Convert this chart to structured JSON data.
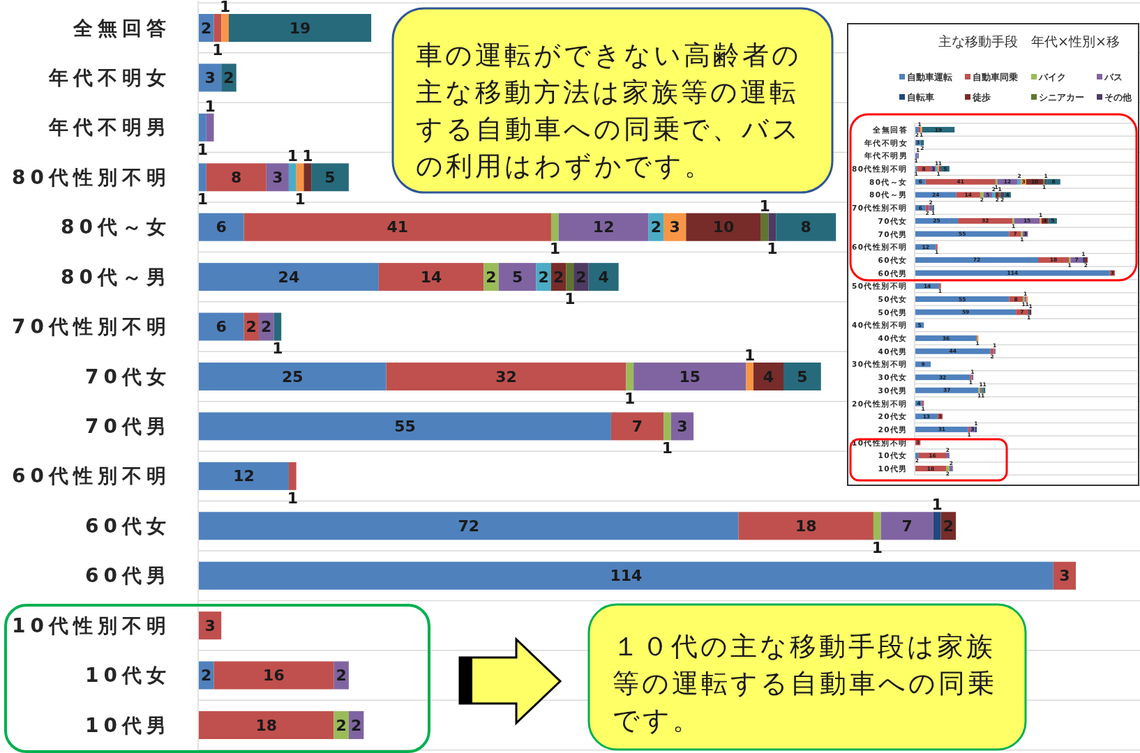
{
  "chart_data": [
    {
      "type": "bar",
      "orientation": "horizontal",
      "stacked": true,
      "data_labels": true,
      "grid": "y",
      "categories": [
        "全無回答",
        "年代不明女",
        "年代不明男",
        "80代性別不明",
        "80代～女",
        "80代～男",
        "70代性別不明",
        "70代女",
        "70代男",
        "60代性別不明",
        "60代女",
        "60代男",
        "10代性別不明",
        "10代女",
        "10代男"
      ],
      "series": [
        {
          "color": "#4f81bd",
          "values": [
            2,
            3,
            1,
            1,
            6,
            24,
            6,
            25,
            55,
            12,
            72,
            114,
            null,
            2,
            null
          ]
        },
        {
          "color": "#c0504d",
          "values": [
            1,
            null,
            null,
            8,
            41,
            14,
            2,
            32,
            7,
            1,
            18,
            3,
            3,
            16,
            18
          ]
        },
        {
          "color": "#9bbb59",
          "values": [
            null,
            null,
            null,
            null,
            1,
            2,
            null,
            1,
            1,
            null,
            1,
            null,
            null,
            null,
            2
          ]
        },
        {
          "color": "#8064a2",
          "values": [
            null,
            null,
            1,
            3,
            12,
            5,
            2,
            15,
            3,
            null,
            7,
            null,
            null,
            2,
            2
          ]
        },
        {
          "color": "#4bacc6",
          "values": [
            null,
            null,
            null,
            1,
            2,
            2,
            null,
            null,
            null,
            null,
            null,
            null,
            null,
            null,
            null
          ]
        },
        {
          "color": "#f79646",
          "values": [
            1,
            null,
            null,
            1,
            3,
            null,
            null,
            1,
            null,
            null,
            null,
            null,
            null,
            null,
            null
          ]
        },
        {
          "color": "#1f497d",
          "values": [
            null,
            null,
            null,
            null,
            null,
            null,
            null,
            null,
            null,
            null,
            1,
            null,
            null,
            null,
            null
          ]
        },
        {
          "color": "#772c2a",
          "values": [
            null,
            null,
            null,
            1,
            10,
            2,
            null,
            4,
            null,
            null,
            2,
            null,
            null,
            null,
            null
          ]
        },
        {
          "color": "#5f7530",
          "values": [
            null,
            null,
            null,
            null,
            1,
            1,
            null,
            null,
            null,
            null,
            null,
            null,
            null,
            null,
            null
          ]
        },
        {
          "color": "#4d3b62",
          "values": [
            null,
            null,
            null,
            null,
            1,
            2,
            null,
            null,
            null,
            null,
            null,
            null,
            null,
            null,
            null
          ]
        },
        {
          "color": "#276a7c",
          "values": [
            19,
            2,
            null,
            5,
            8,
            4,
            1,
            5,
            null,
            null,
            null,
            null,
            null,
            null,
            null
          ]
        }
      ],
      "annotations": [
        "車の運転ができない高齢者の主な移動方法は家族等の運転する自動車への同乗で、バスの利用はわずかです。",
        "１０代の主な移動手段は家族等の運転する自動車への同乗です。"
      ]
    },
    {
      "type": "bar",
      "orientation": "horizontal",
      "stacked": true,
      "data_labels": true,
      "grid": "y",
      "legend": "top",
      "title": "主な移動手段　年代×性別×移",
      "categories": [
        "全無回答",
        "年代不明女",
        "年代不明男",
        "80代性別不明",
        "80代～女",
        "80代～男",
        "70代性別不明",
        "70代女",
        "70代男",
        "60代性別不明",
        "60代女",
        "60代男",
        "50代性別不明",
        "50代女",
        "50代男",
        "40代性別不明",
        "40代女",
        "40代男",
        "30代性別不明",
        "30代女",
        "30代男",
        "20代性別不明",
        "20代女",
        "20代男",
        "10代性別不明",
        "10代女",
        "10代男"
      ],
      "series": [
        {
          "name": "自動車運転",
          "color": "#4f81bd",
          "values": [
            2,
            3,
            1,
            1,
            6,
            24,
            6,
            25,
            55,
            12,
            72,
            114,
            14,
            55,
            59,
            5,
            36,
            44,
            9,
            32,
            37,
            4,
            13,
            31,
            null,
            2,
            null
          ]
        },
        {
          "name": "自動車同乗",
          "color": "#c0504d",
          "values": [
            1,
            null,
            null,
            8,
            41,
            14,
            2,
            32,
            7,
            1,
            18,
            3,
            1,
            8,
            7,
            null,
            null,
            2,
            null,
            1,
            null,
            1,
            3,
            1,
            3,
            16,
            18
          ]
        },
        {
          "name": "バイク",
          "color": "#9bbb59",
          "values": [
            null,
            null,
            null,
            null,
            1,
            2,
            null,
            1,
            1,
            null,
            1,
            null,
            null,
            1,
            null,
            null,
            null,
            null,
            null,
            null,
            1,
            null,
            null,
            null,
            null,
            null,
            2
          ]
        },
        {
          "name": "バス",
          "color": "#8064a2",
          "values": [
            null,
            null,
            1,
            3,
            12,
            5,
            2,
            15,
            3,
            null,
            7,
            null,
            null,
            1,
            null,
            null,
            null,
            1,
            null,
            1,
            1,
            null,
            null,
            3,
            null,
            2,
            2
          ]
        },
        {
          "color": "#4bacc6",
          "values": [
            null,
            null,
            null,
            1,
            2,
            2,
            null,
            null,
            null,
            null,
            null,
            null,
            null,
            null,
            null,
            null,
            null,
            null,
            null,
            null,
            null,
            null,
            null,
            null,
            null,
            null,
            null
          ]
        },
        {
          "color": "#f79646",
          "values": [
            1,
            null,
            null,
            1,
            3,
            null,
            null,
            1,
            null,
            null,
            null,
            null,
            null,
            1,
            null,
            null,
            1,
            null,
            null,
            null,
            null,
            null,
            null,
            null,
            null,
            null,
            null
          ]
        },
        {
          "name": "自転車",
          "color": "#1f497d",
          "values": [
            null,
            null,
            null,
            null,
            null,
            null,
            null,
            null,
            null,
            null,
            1,
            null,
            null,
            null,
            1,
            null,
            null,
            null,
            null,
            null,
            null,
            null,
            null,
            1,
            null,
            null,
            null
          ]
        },
        {
          "name": "徒歩",
          "color": "#772c2a",
          "values": [
            null,
            null,
            null,
            1,
            10,
            2,
            null,
            4,
            null,
            null,
            2,
            null,
            null,
            null,
            1,
            null,
            null,
            null,
            null,
            null,
            null,
            null,
            null,
            null,
            null,
            null,
            null
          ]
        },
        {
          "name": "シニアカー",
          "color": "#5f7530",
          "values": [
            null,
            null,
            null,
            null,
            1,
            1,
            null,
            null,
            null,
            null,
            null,
            null,
            null,
            null,
            null,
            null,
            null,
            null,
            null,
            null,
            1,
            null,
            null,
            null,
            null,
            null,
            null
          ]
        },
        {
          "name": "その他",
          "color": "#4d3b62",
          "values": [
            null,
            null,
            null,
            null,
            1,
            2,
            null,
            null,
            null,
            null,
            null,
            null,
            null,
            null,
            null,
            null,
            null,
            null,
            null,
            null,
            null,
            null,
            null,
            null,
            null,
            null,
            null
          ]
        },
        {
          "color": "#276a7c",
          "values": [
            19,
            2,
            null,
            5,
            8,
            4,
            1,
            5,
            null,
            null,
            null,
            null,
            null,
            null,
            null,
            null,
            null,
            null,
            null,
            null,
            1,
            null,
            null,
            null,
            null,
            null,
            null
          ]
        }
      ]
    }
  ]
}
